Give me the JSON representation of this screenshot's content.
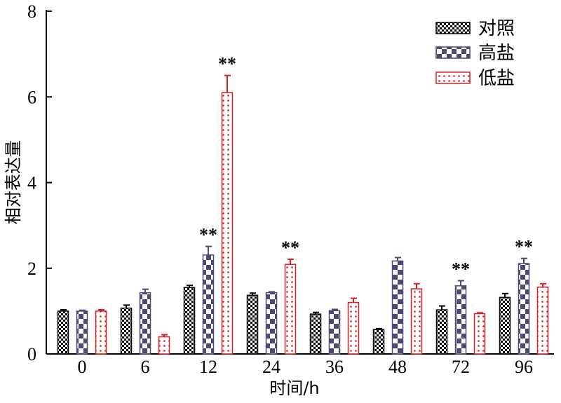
{
  "chart_data": {
    "type": "bar",
    "xlabel": "时间/h",
    "ylabel": "相对表达量",
    "ylim": [
      0,
      8
    ],
    "yticks": [
      0,
      2,
      4,
      6,
      8
    ],
    "categories": [
      "0",
      "6",
      "12",
      "24",
      "36",
      "48",
      "72",
      "96"
    ],
    "legend_position": "top-right",
    "series": [
      {
        "name": "对照",
        "color": "#000000",
        "pattern": "small-checker",
        "values": [
          1.0,
          1.07,
          1.55,
          1.37,
          0.93,
          0.57,
          1.03,
          1.32
        ],
        "errors": [
          0.03,
          0.07,
          0.05,
          0.05,
          0.04,
          0.02,
          0.09,
          0.09
        ],
        "significance": [
          "",
          "",
          "",
          "",
          "",
          "",
          "",
          ""
        ]
      },
      {
        "name": "高盐",
        "color": "#4a4a72",
        "pattern": "large-checker",
        "values": [
          1.0,
          1.43,
          2.31,
          1.43,
          1.01,
          2.17,
          1.59,
          2.11
        ],
        "errors": [
          0.02,
          0.08,
          0.2,
          0.02,
          0.03,
          0.08,
          0.12,
          0.12
        ],
        "significance": [
          "",
          "",
          "**",
          "",
          "",
          "",
          "**",
          "**"
        ]
      },
      {
        "name": "低盐",
        "color": "#d42020",
        "pattern": "dotted",
        "values": [
          1.0,
          0.4,
          6.1,
          2.09,
          1.2,
          1.52,
          0.94,
          1.56
        ],
        "errors": [
          0.03,
          0.05,
          0.4,
          0.12,
          0.1,
          0.12,
          0.02,
          0.08
        ],
        "significance": [
          "",
          "",
          "**",
          "**",
          "",
          "",
          "",
          ""
        ]
      }
    ]
  }
}
